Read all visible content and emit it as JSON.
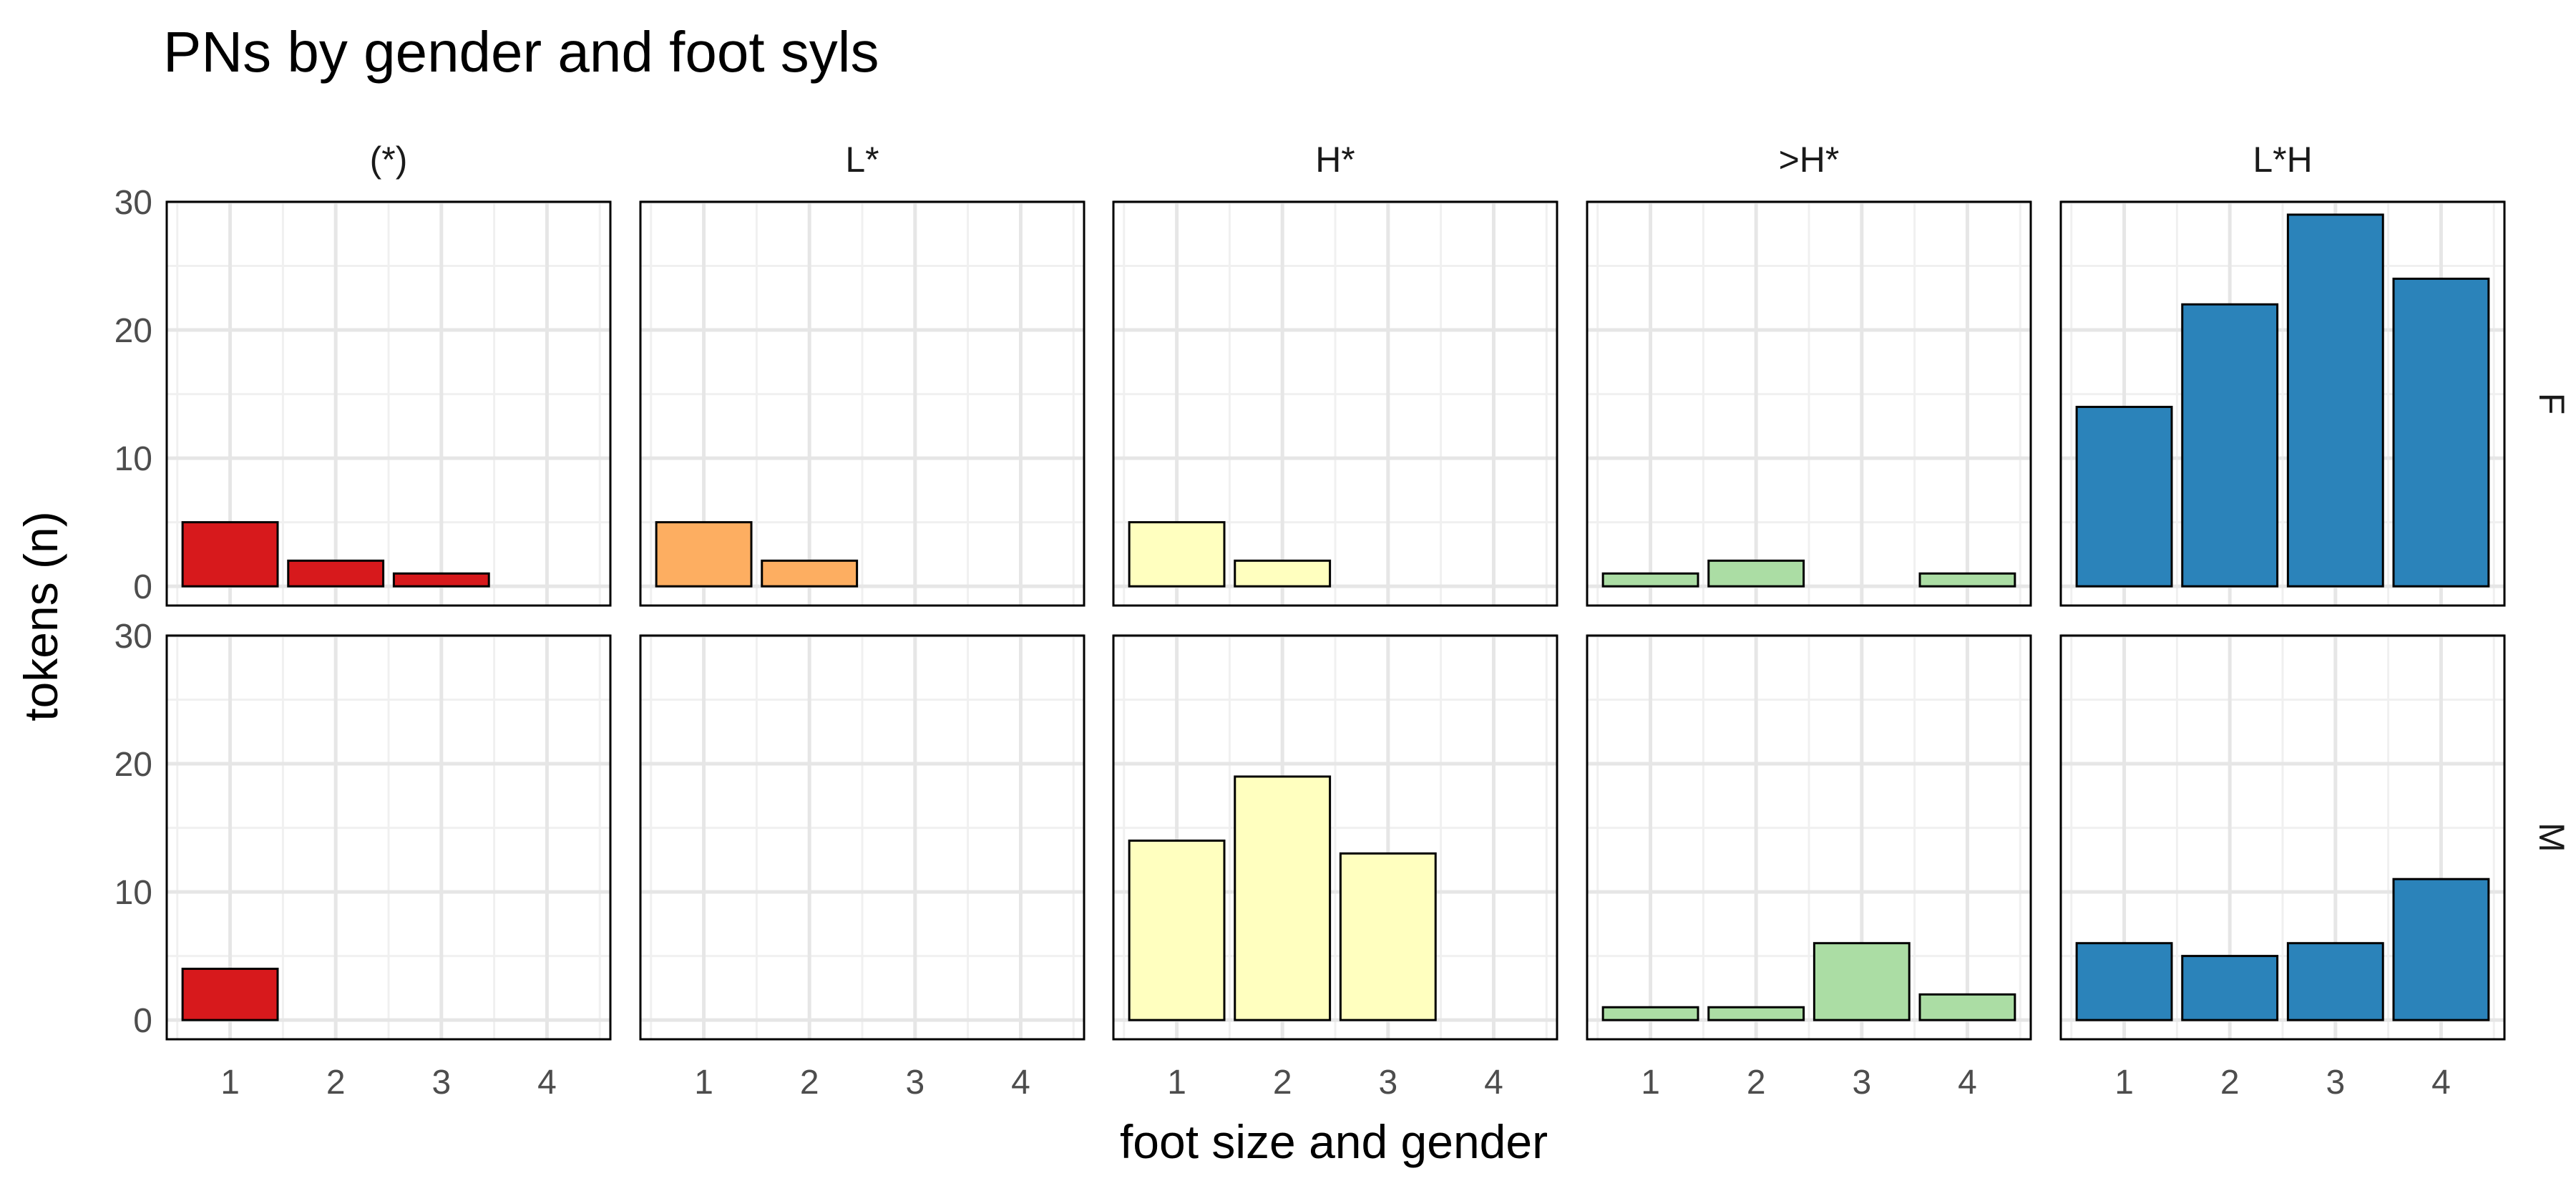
{
  "chart_data": {
    "type": "bar",
    "title": "PNs by gender and foot syls",
    "xlabel": "foot size and gender",
    "ylabel": "tokens (n)",
    "ylim": [
      0,
      30
    ],
    "yticks": [
      "0",
      "10",
      "20",
      "30"
    ],
    "xticks": [
      "1",
      "2",
      "3",
      "4"
    ],
    "grid": true,
    "legend": "none",
    "columns": [
      {
        "label": "(*)",
        "color": "#D7191C"
      },
      {
        "label": "L*",
        "color": "#FDAE61"
      },
      {
        "label": "H*",
        "color": "#FFFFBF"
      },
      {
        "label": ">H*",
        "color": "#ABDDA4"
      },
      {
        "label": "L*H",
        "color": "#2B83BA"
      }
    ],
    "rows": [
      {
        "label": "F",
        "values": [
          [
            5,
            2,
            1,
            0
          ],
          [
            5,
            2,
            0,
            0
          ],
          [
            5,
            2,
            0,
            0
          ],
          [
            1,
            2,
            0,
            1
          ],
          [
            14,
            22,
            29,
            24
          ]
        ]
      },
      {
        "label": "M",
        "values": [
          [
            4,
            0,
            0,
            0
          ],
          [
            0,
            0,
            0,
            0
          ],
          [
            14,
            19,
            13,
            0
          ],
          [
            1,
            1,
            6,
            2
          ],
          [
            6,
            5,
            6,
            11
          ]
        ]
      }
    ]
  }
}
